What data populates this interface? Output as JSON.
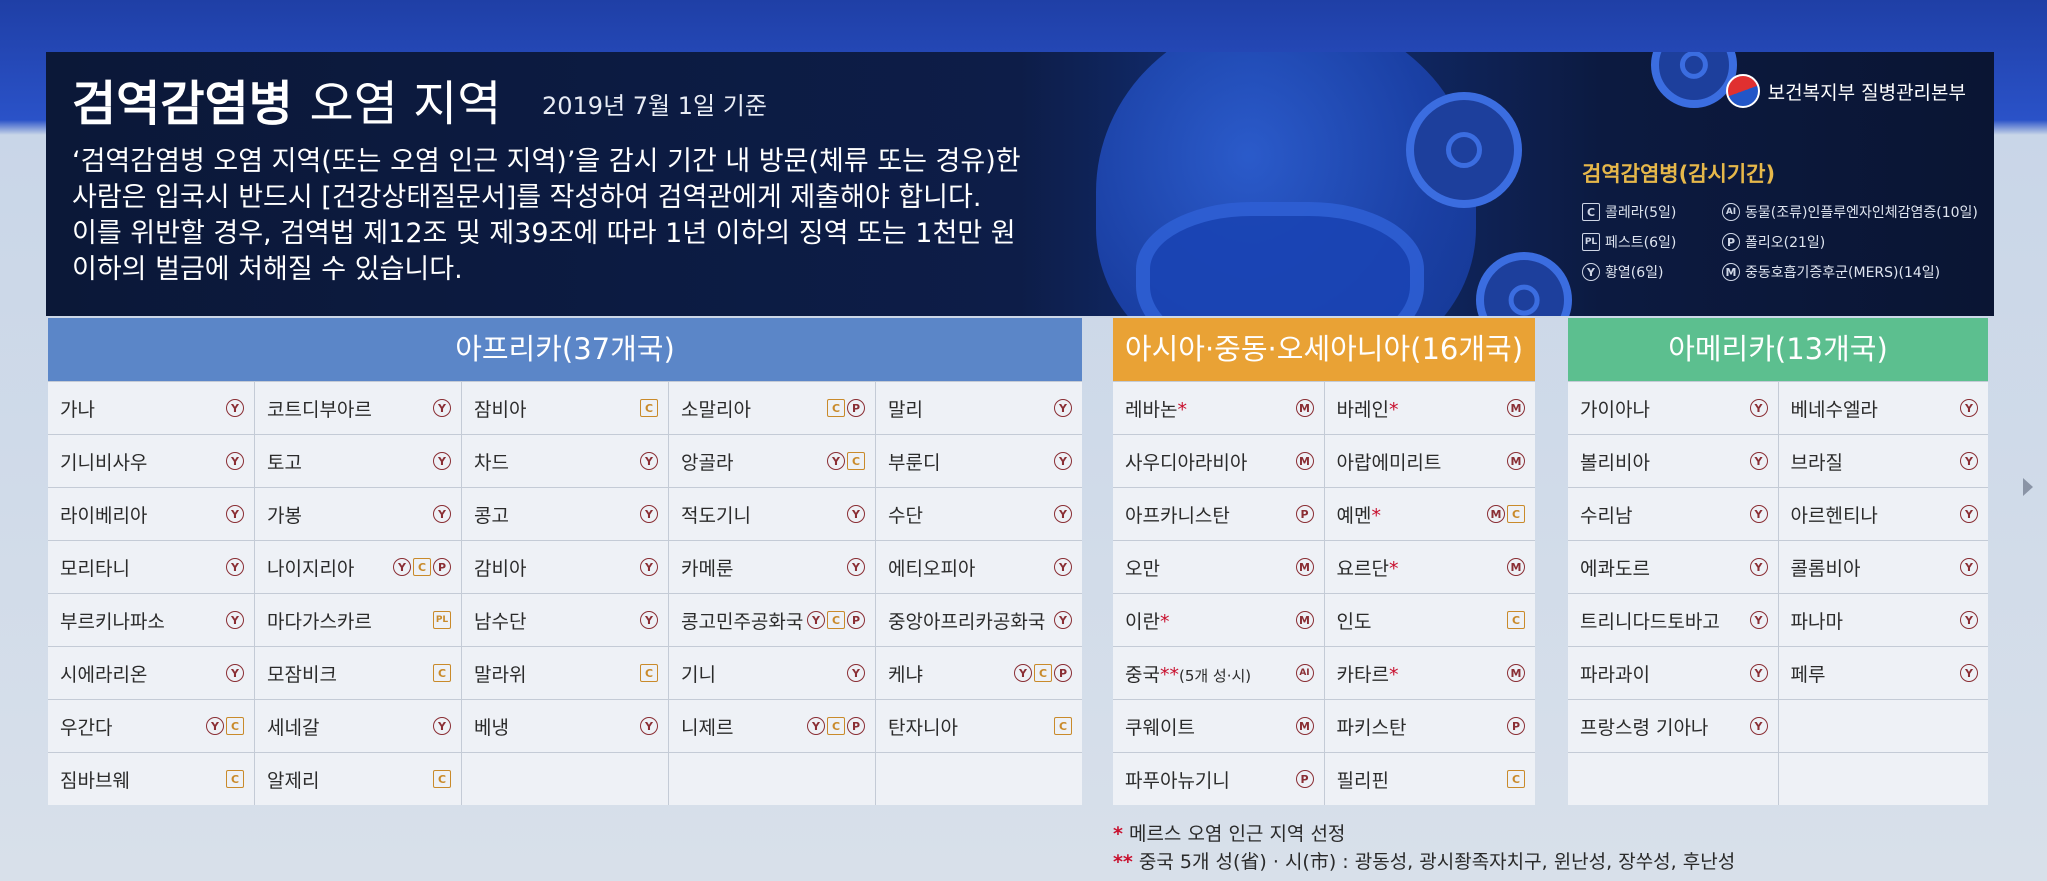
{
  "header": {
    "title_bold": "검역감염병",
    "title_rest": "오염 지역",
    "date": "2019년 7월 1일 기준",
    "notice_lines": [
      "‘검역감염병 오염 지역(또는 오염 인근 지역)’을 감시 기간 내 방문(체류 또는 경유)한",
      "사람은 입국시 반드시 [건강상태질문서]를 작성하여 검역관에게 제출해야 합니다.",
      "이를 위반할 경우, 검역법 제12조 및 제39조에 따라 1년 이하의 징역 또는 1천만 원",
      "이하의 벌금에 처해질 수 있습니다."
    ],
    "org": "보건복지부 질병관리본부"
  },
  "legend": {
    "title": "검역감염병(감시기간)",
    "items": [
      {
        "code": "C",
        "label": "콜레라(5일)"
      },
      {
        "code": "AI",
        "label": "동물(조류)인플루엔자인체감염증(10일)"
      },
      {
        "code": "PL",
        "label": "페스트(6일)"
      },
      {
        "code": "P",
        "label": "폴리오(21일)"
      },
      {
        "code": "Y",
        "label": "황열(6일)"
      },
      {
        "code": "M",
        "label": "중동호흡기증후군(MERS)(14일)"
      }
    ]
  },
  "regions": {
    "africa": {
      "title": "아프리카(37개국)",
      "color": "#5b86c8",
      "rows": [
        [
          {
            "n": "가나",
            "c": [
              "Y"
            ]
          },
          {
            "n": "코트디부아르",
            "c": [
              "Y"
            ]
          },
          {
            "n": "잠비아",
            "c": [
              "C"
            ]
          },
          {
            "n": "소말리아",
            "c": [
              "C",
              "P"
            ]
          },
          {
            "n": "말리",
            "c": [
              "Y"
            ]
          }
        ],
        [
          {
            "n": "기니비사우",
            "c": [
              "Y"
            ]
          },
          {
            "n": "토고",
            "c": [
              "Y"
            ]
          },
          {
            "n": "차드",
            "c": [
              "Y"
            ]
          },
          {
            "n": "앙골라",
            "c": [
              "Y",
              "C"
            ]
          },
          {
            "n": "부룬디",
            "c": [
              "Y"
            ]
          }
        ],
        [
          {
            "n": "라이베리아",
            "c": [
              "Y"
            ]
          },
          {
            "n": "가봉",
            "c": [
              "Y"
            ]
          },
          {
            "n": "콩고",
            "c": [
              "Y"
            ]
          },
          {
            "n": "적도기니",
            "c": [
              "Y"
            ]
          },
          {
            "n": "수단",
            "c": [
              "Y"
            ]
          }
        ],
        [
          {
            "n": "모리타니",
            "c": [
              "Y"
            ]
          },
          {
            "n": "나이지리아",
            "c": [
              "Y",
              "C",
              "P"
            ]
          },
          {
            "n": "감비아",
            "c": [
              "Y"
            ]
          },
          {
            "n": "카메룬",
            "c": [
              "Y"
            ]
          },
          {
            "n": "에티오피아",
            "c": [
              "Y"
            ]
          }
        ],
        [
          {
            "n": "부르키나파소",
            "c": [
              "Y"
            ]
          },
          {
            "n": "마다가스카르",
            "c": [
              "PL"
            ]
          },
          {
            "n": "남수단",
            "c": [
              "Y"
            ]
          },
          {
            "n": "콩고민주공화국",
            "c": [
              "Y",
              "C",
              "P"
            ]
          },
          {
            "n": "중앙아프리카공화국",
            "c": [
              "Y"
            ]
          }
        ],
        [
          {
            "n": "시에라리온",
            "c": [
              "Y"
            ]
          },
          {
            "n": "모잠비크",
            "c": [
              "C"
            ]
          },
          {
            "n": "말라위",
            "c": [
              "C"
            ]
          },
          {
            "n": "기니",
            "c": [
              "Y"
            ]
          },
          {
            "n": "케냐",
            "c": [
              "Y",
              "C",
              "P"
            ]
          }
        ],
        [
          {
            "n": "우간다",
            "c": [
              "Y",
              "C"
            ]
          },
          {
            "n": "세네갈",
            "c": [
              "Y"
            ]
          },
          {
            "n": "베냉",
            "c": [
              "Y"
            ]
          },
          {
            "n": "니제르",
            "c": [
              "Y",
              "C",
              "P"
            ]
          },
          {
            "n": "탄자니아",
            "c": [
              "C"
            ]
          }
        ],
        [
          {
            "n": "짐바브웨",
            "c": [
              "C"
            ]
          },
          {
            "n": "알제리",
            "c": [
              "C"
            ]
          },
          {
            "n": "",
            "c": []
          },
          {
            "n": "",
            "c": []
          },
          {
            "n": "",
            "c": []
          }
        ]
      ]
    },
    "asia": {
      "title": "아시아·중동·오세아니아(16개국)",
      "color": "#e9a235",
      "rows": [
        [
          {
            "n": "레바논",
            "s": "*",
            "c": [
              "M"
            ]
          },
          {
            "n": "바레인",
            "s": "*",
            "c": [
              "M"
            ]
          }
        ],
        [
          {
            "n": "사우디아라비아",
            "c": [
              "M"
            ]
          },
          {
            "n": "아랍에미리트",
            "c": [
              "M"
            ]
          }
        ],
        [
          {
            "n": "아프카니스탄",
            "c": [
              "P"
            ]
          },
          {
            "n": "예멘",
            "s": "*",
            "c": [
              "M",
              "C"
            ]
          }
        ],
        [
          {
            "n": "오만",
            "c": [
              "M"
            ]
          },
          {
            "n": "요르단",
            "s": "*",
            "c": [
              "M"
            ]
          }
        ],
        [
          {
            "n": "이란",
            "s": "*",
            "c": [
              "M"
            ]
          },
          {
            "n": "인도",
            "c": [
              "C"
            ]
          }
        ],
        [
          {
            "n": "중국",
            "s": "**",
            "sub": "(5개 성·시)",
            "c": [
              "AI"
            ]
          },
          {
            "n": "카타르",
            "s": "*",
            "c": [
              "M"
            ]
          }
        ],
        [
          {
            "n": "쿠웨이트",
            "c": [
              "M"
            ]
          },
          {
            "n": "파키스탄",
            "c": [
              "P"
            ]
          }
        ],
        [
          {
            "n": "파푸아뉴기니",
            "c": [
              "P"
            ]
          },
          {
            "n": "필리핀",
            "c": [
              "C"
            ]
          }
        ]
      ]
    },
    "america": {
      "title": "아메리카(13개국)",
      "color": "#5cbf8f",
      "rows": [
        [
          {
            "n": "가이아나",
            "c": [
              "Y"
            ]
          },
          {
            "n": "베네수엘라",
            "c": [
              "Y"
            ]
          }
        ],
        [
          {
            "n": "볼리비아",
            "c": [
              "Y"
            ]
          },
          {
            "n": "브라질",
            "c": [
              "Y"
            ]
          }
        ],
        [
          {
            "n": "수리남",
            "c": [
              "Y"
            ]
          },
          {
            "n": "아르헨티나",
            "c": [
              "Y"
            ]
          }
        ],
        [
          {
            "n": "에콰도르",
            "c": [
              "Y"
            ]
          },
          {
            "n": "콜롬비아",
            "c": [
              "Y"
            ]
          }
        ],
        [
          {
            "n": "트리니다드토바고",
            "c": [
              "Y"
            ]
          },
          {
            "n": "파나마",
            "c": [
              "Y"
            ]
          }
        ],
        [
          {
            "n": "파라과이",
            "c": [
              "Y"
            ]
          },
          {
            "n": "페루",
            "c": [
              "Y"
            ]
          }
        ],
        [
          {
            "n": "프랑스령 기아나",
            "c": [
              "Y"
            ]
          },
          {
            "n": "",
            "c": []
          }
        ],
        [
          {
            "n": "",
            "c": []
          },
          {
            "n": "",
            "c": []
          }
        ]
      ]
    }
  },
  "code_labels": {
    "Y": "Y",
    "C": "C",
    "P": "P",
    "M": "M",
    "PL": "PL",
    "AI": "AI"
  },
  "notes": [
    {
      "mark": "*",
      "text": " 메르스 오염 인근 지역 선정"
    },
    {
      "mark": "**",
      "text": " 중국 5개 성(省) · 시(市) : 광동성, 광시좡족자치구, 윈난성, 장쑤성, 후난성"
    }
  ]
}
